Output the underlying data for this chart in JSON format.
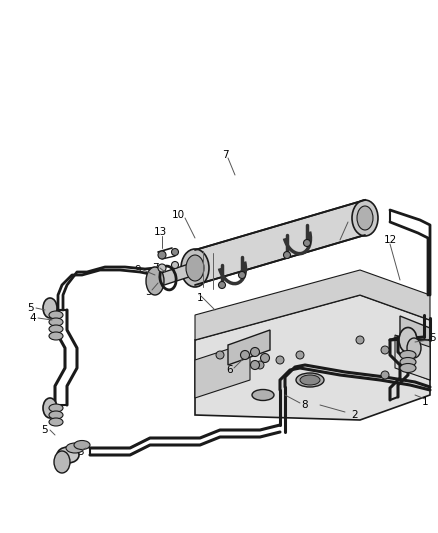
{
  "bg_color": "#ffffff",
  "line_color": "#1a1a1a",
  "gray_fill": "#d8d8d8",
  "gray_mid": "#b8b8b8",
  "gray_light": "#e8e8e8",
  "figsize": [
    4.38,
    5.33
  ],
  "dpi": 100,
  "font_size": 7.5
}
